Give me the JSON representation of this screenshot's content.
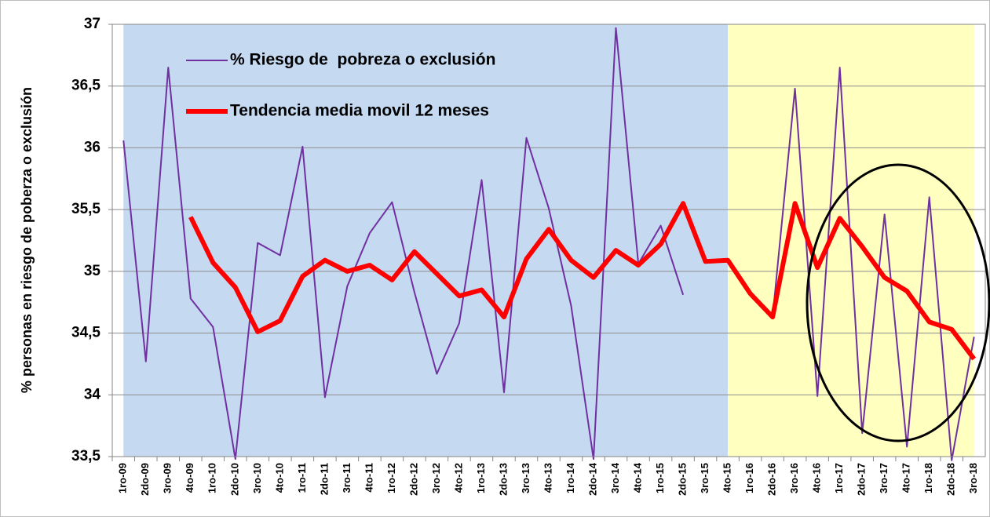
{
  "chart_data": {
    "type": "line",
    "y_label": "% personas en riesgo de poberza o exclusión",
    "categories": [
      "1ro-09",
      "2do-09",
      "3ro-09",
      "4to-09",
      "1ro-10",
      "2do-10",
      "3ro-10",
      "4to-10",
      "1ro-11",
      "2do-11",
      "3ro-11",
      "4to-11",
      "1ro-12",
      "2do-12",
      "3ro-12",
      "4to-12",
      "1ro-13",
      "2do-13",
      "3ro-13",
      "4to-13",
      "1ro-14",
      "2do-14",
      "3ro-14",
      "4to-14",
      "1ro-15",
      "2do-15",
      "3ro-15",
      "4to-15",
      "1ro-16",
      "2do-16",
      "3ro-16",
      "4to-16",
      "1ro-17",
      "2do-17",
      "3ro-17",
      "4to-17",
      "1ro-18",
      "2do-18",
      "3ro-18"
    ],
    "series": [
      {
        "name": "% Riesgo de  pobreza o exclusión",
        "color": "#7030a0",
        "width": 2,
        "values": [
          36.06,
          34.27,
          36.65,
          34.78,
          34.55,
          33.48,
          35.23,
          35.13,
          36.01,
          33.98,
          34.88,
          35.31,
          35.56,
          34.83,
          34.17,
          34.58,
          35.74,
          34.02,
          36.08,
          35.51,
          34.72,
          33.48,
          36.97,
          35.06,
          35.37,
          34.81,
          null,
          null,
          null,
          34.63,
          36.48,
          33.99,
          36.65,
          33.69,
          35.46,
          33.58,
          35.6,
          33.47,
          34.47
        ]
      },
      {
        "name": "Tendencia media movil 12 meses",
        "color": "#ff0000",
        "width": 6,
        "values": [
          null,
          null,
          null,
          35.44,
          35.07,
          34.87,
          34.51,
          34.6,
          34.96,
          35.09,
          35.0,
          35.05,
          34.93,
          35.16,
          34.98,
          34.8,
          34.85,
          34.63,
          35.1,
          35.34,
          35.09,
          34.95,
          35.17,
          35.05,
          35.22,
          35.55,
          35.08,
          35.09,
          34.82,
          34.63,
          35.55,
          35.03,
          35.43,
          35.2,
          34.95,
          34.84,
          34.59,
          34.53,
          34.29
        ]
      }
    ],
    "ylim": [
      33.5,
      37
    ],
    "yticks": [
      {
        "value": 33.5,
        "label": "33,5"
      },
      34,
      {
        "value": 34.5,
        "label": "34,5"
      },
      35,
      {
        "value": 35.5,
        "label": "35,5"
      },
      36,
      {
        "value": 36.5,
        "label": "36,5"
      },
      37
    ],
    "grid": true
  }
}
